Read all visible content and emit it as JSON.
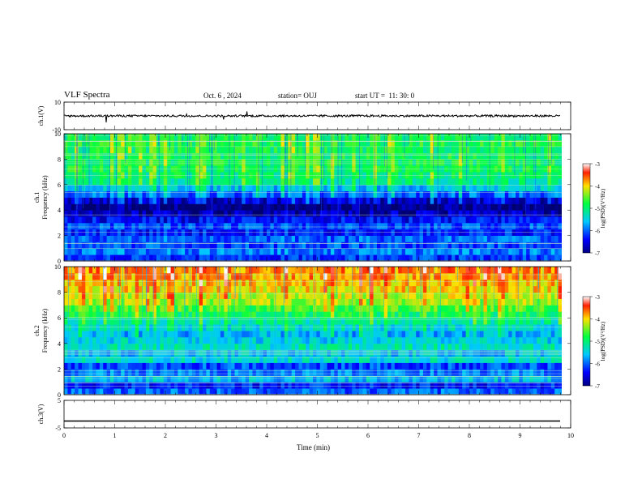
{
  "header": {
    "title": "VLF Spectra",
    "date": "Oct. 6 , 2024",
    "station": "station= OUJ",
    "start_ut": "start UT =  11: 30: 0"
  },
  "chart_data": [
    {
      "type": "line",
      "panel": "ch1-waveform",
      "ylabel": "ch.1(V)",
      "ylim": [
        -10,
        10
      ],
      "yticks": [
        "10",
        "-10"
      ],
      "x": [
        0,
        9.8
      ],
      "series": [
        {
          "values": [
            0,
            0
          ]
        }
      ],
      "color": "#000000"
    },
    {
      "type": "heatmap",
      "panel": "ch1-spectrogram",
      "ylabel_lines": [
        "ch.1",
        "Frequency (kHz)"
      ],
      "ylim": [
        0,
        10
      ],
      "yticks": [
        "0",
        "2",
        "4",
        "6",
        "8",
        "10"
      ],
      "xlim": [
        0,
        9.8
      ],
      "colorbar": {
        "label": "log(PSD)(V²/Hz)",
        "ticks": [
          "-3",
          "-4",
          "-5",
          "-6",
          "-7"
        ],
        "range": [
          -7,
          -3
        ]
      },
      "freq_kHz": [
        0.25,
        0.75,
        1.25,
        1.75,
        2.25,
        2.75,
        3.25,
        3.75,
        4.25,
        4.75,
        5.25,
        5.75,
        6.25,
        6.75,
        7.25,
        7.75,
        8.25,
        8.75,
        9.25,
        9.75
      ],
      "log_psd_mean": [
        -6.2,
        -5.9,
        -6.1,
        -6.0,
        -6.3,
        -6.1,
        -6.4,
        -6.7,
        -6.9,
        -6.6,
        -6.0,
        -5.6,
        -5.1,
        -5.0,
        -4.9,
        -4.9,
        -4.9,
        -4.9,
        -4.8,
        -4.9
      ]
    },
    {
      "type": "heatmap",
      "panel": "ch2-spectrogram",
      "ylabel_lines": [
        "ch.2",
        "Frequency (kHz)"
      ],
      "ylim": [
        0,
        10
      ],
      "yticks": [
        "0",
        "2",
        "4",
        "6",
        "8",
        "10"
      ],
      "xlim": [
        0,
        9.8
      ],
      "colorbar": {
        "label": "log(PSD)(V²/Hz)",
        "ticks": [
          "-3",
          "-4",
          "-5",
          "-6",
          "-7"
        ],
        "range": [
          -7,
          -3
        ]
      },
      "freq_kHz": [
        0.25,
        0.75,
        1.25,
        1.75,
        2.25,
        2.75,
        3.25,
        3.75,
        4.25,
        4.75,
        5.25,
        5.75,
        6.25,
        6.75,
        7.25,
        7.75,
        8.25,
        8.75,
        9.25,
        9.75
      ],
      "log_psd_mean": [
        -6.0,
        -6.3,
        -5.6,
        -5.9,
        -6.1,
        -5.4,
        -5.6,
        -5.3,
        -5.5,
        -5.7,
        -5.4,
        -5.2,
        -4.9,
        -4.6,
        -4.3,
        -4.2,
        -4.0,
        -3.9,
        -3.8,
        -3.7
      ]
    },
    {
      "type": "line",
      "panel": "ch3-waveform",
      "ylabel": "ch.3(V)",
      "ylim": [
        -5,
        5
      ],
      "yticks": [
        "5",
        "-5"
      ],
      "x": [
        0,
        9.8
      ],
      "series": [
        {
          "values": [
            -2.5,
            -2.5
          ]
        }
      ],
      "color": "#000000"
    }
  ],
  "xaxis": {
    "label": "Time (min)",
    "ticks": [
      "0",
      "1",
      "2",
      "3",
      "4",
      "5",
      "6",
      "7",
      "8",
      "9",
      "10"
    ],
    "range": [
      0,
      10
    ]
  }
}
